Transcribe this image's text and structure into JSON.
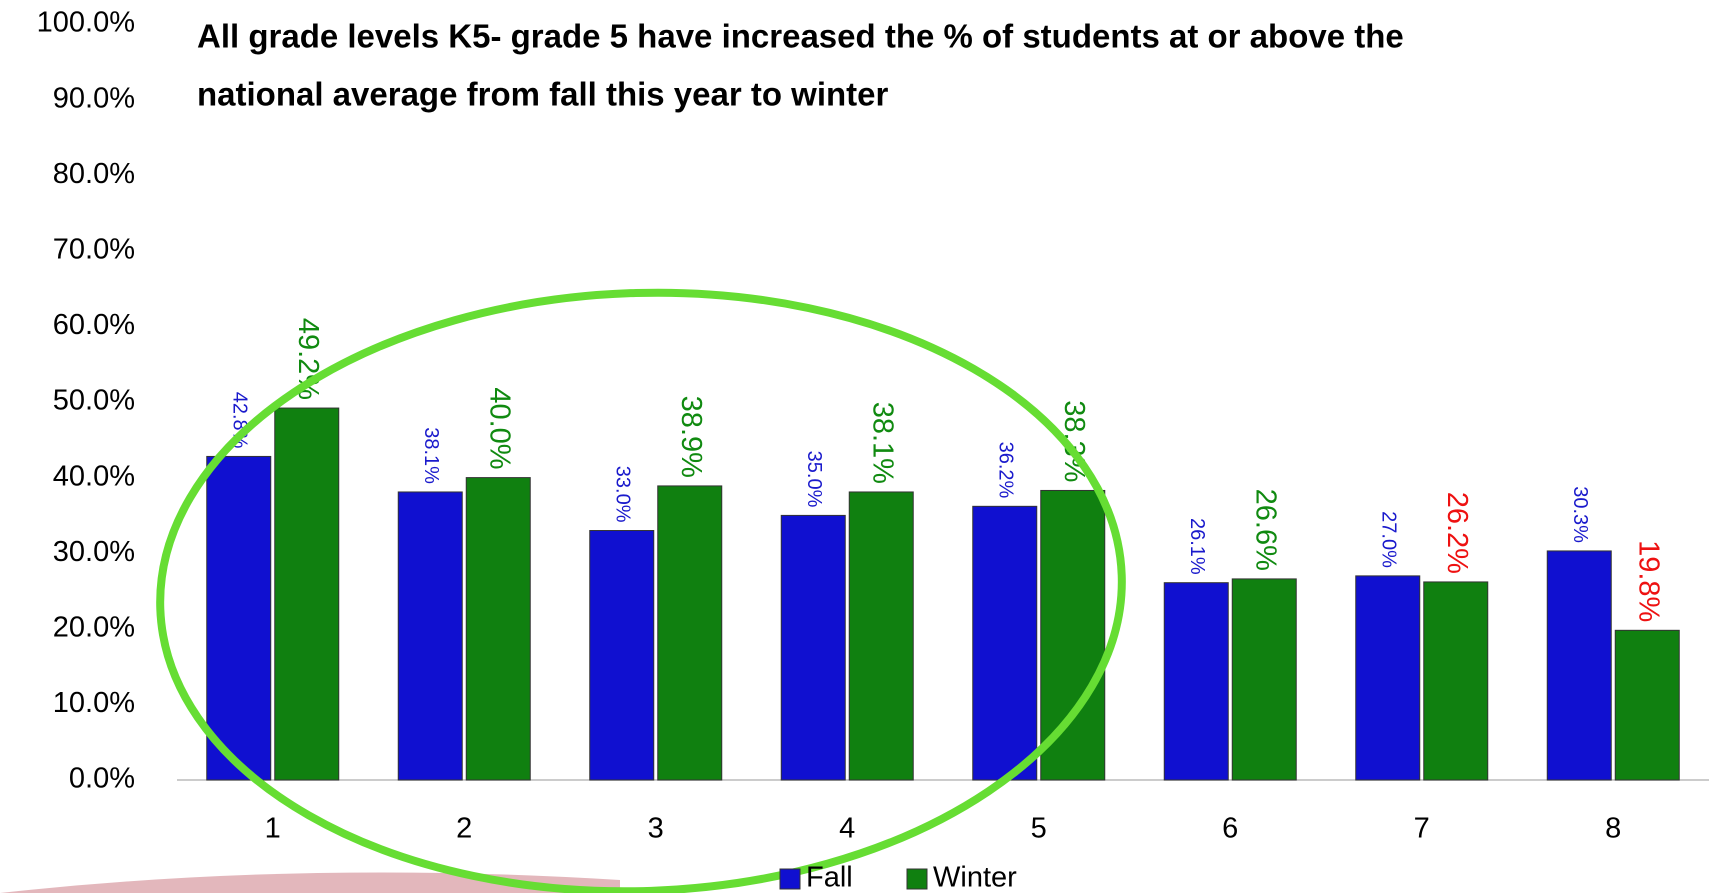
{
  "chart_data": {
    "type": "bar",
    "title": "All grade levels K5- grade 5 have increased the % of students at or above the national average from fall this year to winter",
    "categories": [
      "1",
      "2",
      "3",
      "4",
      "5",
      "6",
      "7",
      "8"
    ],
    "series": [
      {
        "name": "Fall",
        "color": "#1010d0",
        "values": [
          42.8,
          38.1,
          33.0,
          35.0,
          36.2,
          26.1,
          27.0,
          30.3
        ],
        "value_labels": [
          "42.8%",
          "38.1%",
          "33.0%",
          "35.0%",
          "36.2%",
          "26.1%",
          "27.0%",
          "30.3%"
        ],
        "value_label_colors": [
          "#1a1acc",
          "#1a1acc",
          "#1a1acc",
          "#1a1acc",
          "#1a1acc",
          "#1a1acc",
          "#1a1acc",
          "#1a1acc"
        ]
      },
      {
        "name": "Winter",
        "color": "#108010",
        "values": [
          49.2,
          40.0,
          38.9,
          38.1,
          38.3,
          26.6,
          26.2,
          19.8
        ],
        "value_labels": [
          "49.2%",
          "40.0%",
          "38.9%",
          "38.1%",
          "38.3%",
          "26.6%",
          "26.2%",
          "19.8%"
        ],
        "value_label_colors": [
          "#108a10",
          "#108a10",
          "#108a10",
          "#108a10",
          "#108a10",
          "#108a10",
          "#ee1111",
          "#ee1111"
        ]
      }
    ],
    "ylim": [
      0,
      100
    ],
    "yticks": [
      {
        "value": 0,
        "label": "0.0%"
      },
      {
        "value": 10,
        "label": "10.0%"
      },
      {
        "value": 20,
        "label": "20.0%"
      },
      {
        "value": 30,
        "label": "30.0%"
      },
      {
        "value": 40,
        "label": "40.0%"
      },
      {
        "value": 50,
        "label": "50.0%"
      },
      {
        "value": 60,
        "label": "60.0%"
      },
      {
        "value": 70,
        "label": "70.0%"
      },
      {
        "value": 80,
        "label": "80.0%"
      },
      {
        "value": 90,
        "label": "90.0%"
      },
      {
        "value": 100,
        "label": "100.0%"
      }
    ],
    "grid": false,
    "legend": "bottom"
  }
}
